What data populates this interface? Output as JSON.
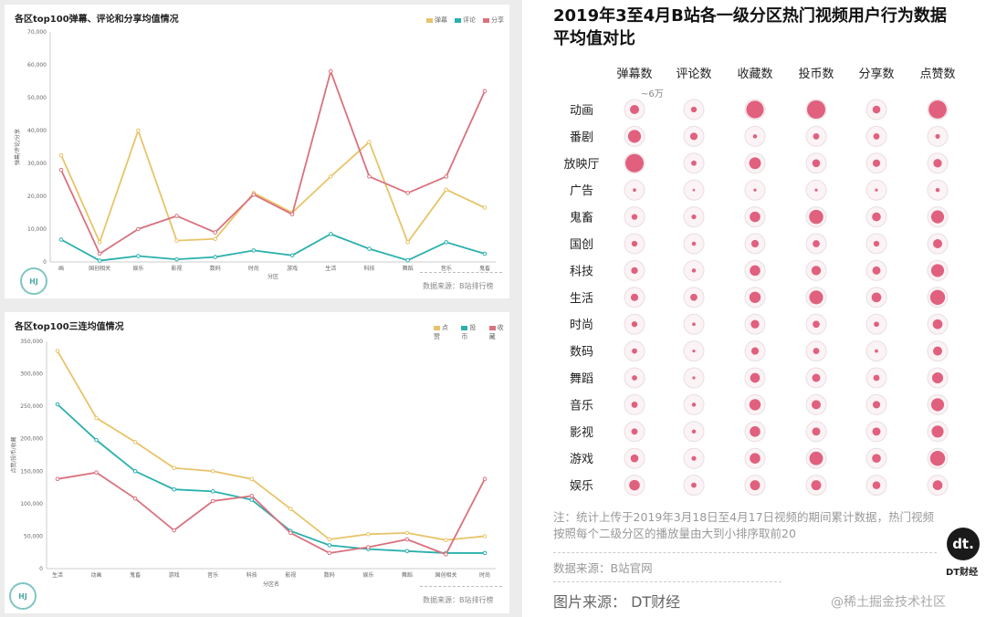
{
  "panel1": {
    "title": "各区top100弹幕、评论和分享均值情况",
    "ylabel": "弹幕/评论/分享",
    "xlabel": "分区",
    "source": "数据来源：B站排行榜",
    "logo_text": "HJ",
    "colors": {
      "弹幕": "#e8c468",
      "评论": "#2ab0ad",
      "分享": "#d9727e"
    }
  },
  "panel2": {
    "title": "各区top100三连均值情况",
    "ylabel": "点赞/投币/收藏",
    "xlabel": "分区名",
    "source": "数据来源：B站排行榜",
    "logo_text": "HJ",
    "colors": {
      "点赞": "#e8c468",
      "投币": "#2ab0ad",
      "收藏": "#d9727e"
    }
  },
  "panel3": {
    "title": "2019年3至4月B站各一级分区热门视频用户行为数据平均值对比",
    "scale_label": "~6万",
    "note": "注：统计上传于2019年3月18日至4月17日视频的期间累计数据，热门视频按照每个二级分区的播放量由大到小排序取前20",
    "source": "数据来源：B站官网",
    "image_source": "图片来源： DT财经",
    "watermark": "@稀土掘金技术社区",
    "logo_text": "dt.",
    "logo_name": "DT财经"
  },
  "chart_data": [
    {
      "type": "line",
      "title": "各区top100弹幕、评论和分享均值情况",
      "xlabel": "分区",
      "ylabel": "弹幕/评论/分享",
      "ylim": [
        0,
        70000
      ],
      "yticks": [
        0,
        10000,
        20000,
        30000,
        40000,
        50000,
        60000,
        70000
      ],
      "categories": [
        "画",
        "国创相关",
        "娱乐",
        "影视",
        "数码",
        "时尚",
        "游戏",
        "生活",
        "科技",
        "舞蹈",
        "音乐",
        "鬼畜"
      ],
      "series": [
        {
          "name": "弹幕",
          "color": "#e8c468",
          "values": [
            32500,
            6000,
            40000,
            6500,
            7000,
            21000,
            15000,
            26000,
            36500,
            6000,
            22000,
            16500
          ]
        },
        {
          "name": "评论",
          "color": "#2ab0ad",
          "values": [
            6800,
            400,
            1800,
            800,
            1500,
            3500,
            2000,
            8500,
            4000,
            500,
            6000,
            2500
          ]
        },
        {
          "name": "分享",
          "color": "#d9727e",
          "values": [
            28000,
            2500,
            10000,
            14000,
            9000,
            20500,
            14500,
            58000,
            26000,
            21000,
            26000,
            52000
          ]
        }
      ],
      "legend": "top-right",
      "grid": false
    },
    {
      "type": "line",
      "title": "各区top100三连均值情况",
      "xlabel": "分区名",
      "ylabel": "点赞/投币/收藏",
      "ylim": [
        0,
        350000
      ],
      "yticks": [
        0,
        50000,
        100000,
        150000,
        200000,
        250000,
        300000,
        350000
      ],
      "categories": [
        "生活",
        "动画",
        "鬼畜",
        "游戏",
        "音乐",
        "科技",
        "影视",
        "数码",
        "娱乐",
        "舞蹈",
        "国创相关",
        "时尚"
      ],
      "series": [
        {
          "name": "点赞",
          "color": "#e8c468",
          "values": [
            335000,
            232000,
            195000,
            155000,
            150000,
            138000,
            92000,
            45000,
            53000,
            55000,
            44000,
            50000
          ]
        },
        {
          "name": "投币",
          "color": "#2ab0ad",
          "values": [
            253000,
            198000,
            150000,
            122000,
            119000,
            106000,
            58000,
            36000,
            30000,
            27000,
            24000,
            24000
          ]
        },
        {
          "name": "收藏",
          "color": "#d9727e",
          "values": [
            138000,
            148000,
            108000,
            59000,
            104000,
            112000,
            55000,
            24000,
            33000,
            45000,
            22000,
            138000
          ]
        }
      ],
      "legend": "top-right",
      "grid": false
    },
    {
      "type": "scatter",
      "title": "2019年3至4月B站各一级分区热门视频用户行为数据平均值对比",
      "columns": [
        "弹幕数",
        "评论数",
        "收藏数",
        "投币数",
        "分享数",
        "点赞数"
      ],
      "rows": [
        "动画",
        "番剧",
        "放映厅",
        "广告",
        "鬼畜",
        "国创",
        "科技",
        "生活",
        "时尚",
        "数码",
        "舞蹈",
        "音乐",
        "影视",
        "游戏",
        "娱乐"
      ],
      "dot_color": "#e0607e",
      "scale_max": 60000,
      "values": [
        [
          15000,
          6000,
          55000,
          60000,
          11000,
          58000
        ],
        [
          30000,
          10000,
          3000,
          7000,
          7000,
          4000
        ],
        [
          60000,
          5000,
          25000,
          11000,
          10000,
          13000
        ],
        [
          2000,
          1000,
          1500,
          1500,
          1500,
          3000
        ],
        [
          6000,
          4000,
          20000,
          36000,
          14000,
          30000
        ],
        [
          6000,
          3000,
          10000,
          9000,
          6000,
          15000
        ],
        [
          8000,
          3000,
          20000,
          16000,
          12000,
          30000
        ],
        [
          10000,
          9000,
          23000,
          34000,
          17000,
          40000
        ],
        [
          6000,
          2000,
          13000,
          9000,
          5000,
          17000
        ],
        [
          5000,
          1500,
          10000,
          7000,
          2000,
          15000
        ],
        [
          5000,
          1500,
          17000,
          12000,
          7000,
          22000
        ],
        [
          7000,
          3000,
          23000,
          15000,
          10000,
          30000
        ],
        [
          7000,
          3000,
          20000,
          12000,
          12000,
          26000
        ],
        [
          11000,
          4000,
          20000,
          33000,
          14000,
          40000
        ],
        [
          20000,
          5000,
          18000,
          18000,
          11000,
          17000
        ]
      ]
    }
  ]
}
